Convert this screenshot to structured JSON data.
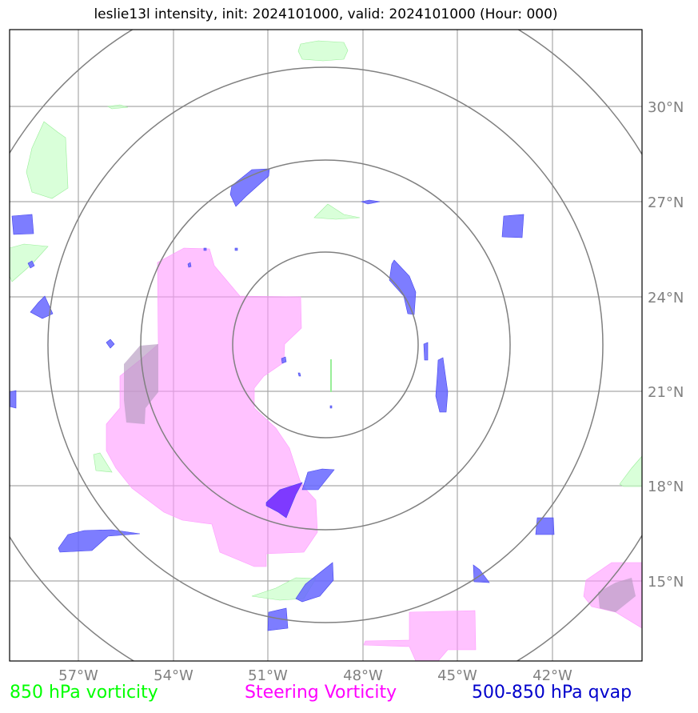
{
  "title": "leslie13l intensity, init: 2024101000, valid: 2024101000 (Hour: 000)",
  "lat_ticks": [
    "30°N",
    "27°N",
    "24°N",
    "21°N",
    "18°N",
    "15°N"
  ],
  "lon_ticks": [
    "57°W",
    "54°W",
    "51°W",
    "48°W",
    "45°W",
    "42°W"
  ],
  "legend": {
    "vorticity_850": "850 hPa vorticity",
    "steering": "Steering Vorticity",
    "qvap": "500-850 hPa qvap"
  },
  "colors": {
    "vorticity_850": "#00ff00",
    "steering": "#ff00ff",
    "qvap": "#0000cc",
    "grid": "#a0a0a0",
    "rings": "#808080"
  }
}
